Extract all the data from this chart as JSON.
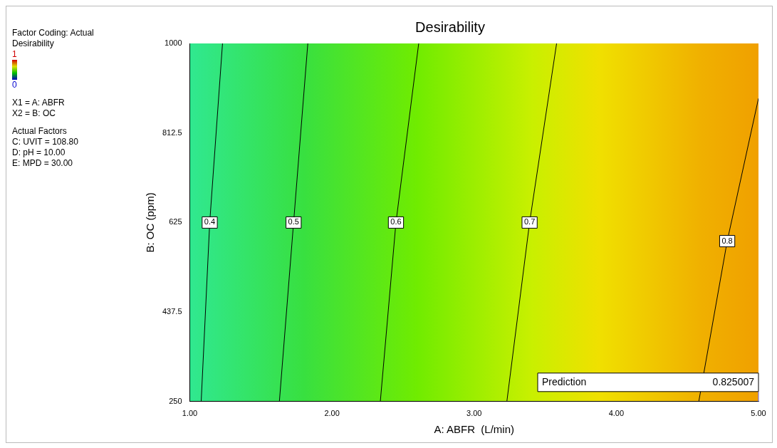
{
  "chart_data": {
    "type": "line",
    "title": "Desirability",
    "xlabel": "A: ABFR  (L/min)",
    "ylabel": "B: OC (ppm)",
    "marker": "none",
    "xlim": [
      1,
      5
    ],
    "xticks": [
      {
        "value": 1,
        "label": "1.00"
      },
      {
        "value": 2,
        "label": "2.00"
      },
      {
        "value": 3,
        "label": "3.00"
      },
      {
        "value": 4,
        "label": "4.00"
      },
      {
        "value": 5,
        "label": "5.00"
      }
    ],
    "ylim": [
      250,
      1000
    ],
    "yticks": [
      250,
      437.5,
      625,
      812.5,
      1000
    ],
    "series": [
      {
        "name": "0.4",
        "color": "#000000",
        "x": [
          1.08,
          1.14,
          1.23
        ],
        "values": [
          250,
          625,
          1000
        ]
      },
      {
        "name": "0.5",
        "color": "#000000",
        "x": [
          1.63,
          1.73,
          1.83
        ],
        "values": [
          250,
          625,
          1000
        ]
      },
      {
        "name": "0.6",
        "color": "#000000",
        "x": [
          2.34,
          2.45,
          2.61
        ],
        "values": [
          250,
          625,
          1000
        ]
      },
      {
        "name": "0.7",
        "color": "#000000",
        "x": [
          3.23,
          3.39,
          3.58
        ],
        "values": [
          250,
          625,
          1000
        ]
      },
      {
        "name": "0.8",
        "color": "#000000",
        "x": [
          4.58,
          4.78,
          5
        ],
        "values": [
          250,
          586,
          885
        ]
      }
    ],
    "annotations": [
      "Factor Coding: Actual",
      "Desirability",
      "1",
      "0",
      "X1 = A: ABFR",
      "X2 = B: OC",
      "Actual Factors",
      "C: UVIT = 108.80",
      "D: pH = 10.00",
      "E: MPD = 30.00",
      "Prediction",
      "0.825007"
    ]
  }
}
